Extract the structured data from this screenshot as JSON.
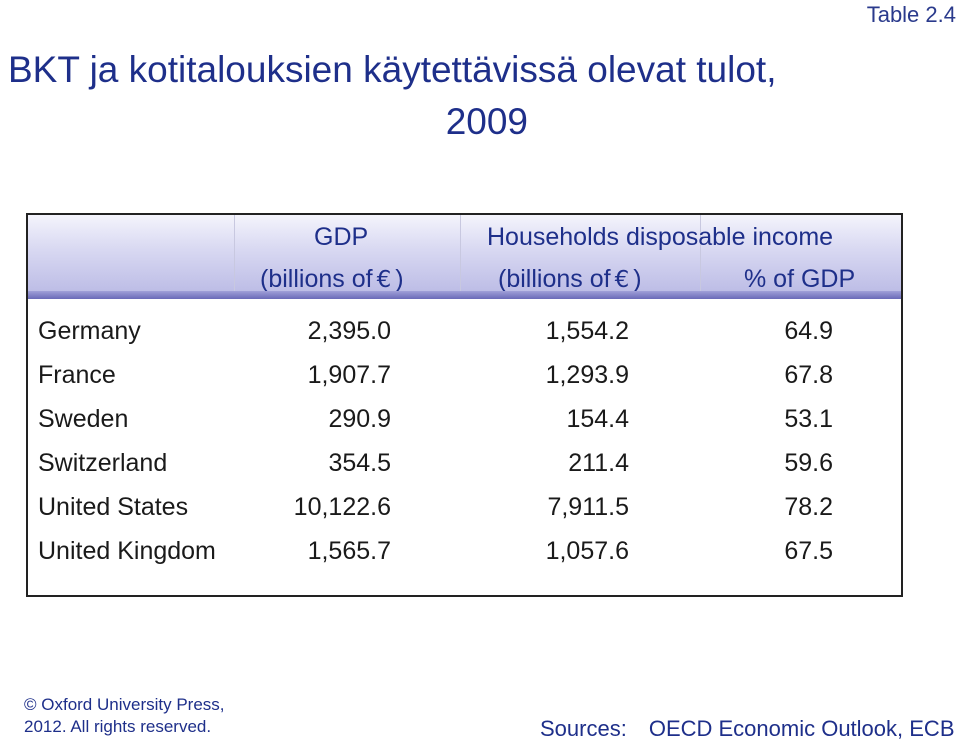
{
  "table_label": "Table 2.4",
  "title": {
    "line1": "BKT ja kotitalouksien käytettävissä olevat tulot,",
    "line2": "2009"
  },
  "table": {
    "header": {
      "gdp": "GDP",
      "household_income": "Households disposable income",
      "unit_gdp_prefix": "(billions of",
      "unit_gdp_suffix": ")",
      "unit_hdi_prefix": "(billions of",
      "unit_hdi_suffix": ")",
      "currency_symbol": "€",
      "pct_gdp": "% of GDP"
    },
    "rows": [
      {
        "country": "Germany",
        "gdp": "2,395.0",
        "income": "1,554.2",
        "pct": "64.9"
      },
      {
        "country": "France",
        "gdp": "1,907.7",
        "income": "1,293.9",
        "pct": "67.8"
      },
      {
        "country": "Sweden",
        "gdp": "290.9",
        "income": "154.4",
        "pct": "53.1"
      },
      {
        "country": "Switzerland",
        "gdp": "354.5",
        "income": "211.4",
        "pct": "59.6"
      },
      {
        "country": "United States",
        "gdp": "10,122.6",
        "income": "7,911.5",
        "pct": "78.2"
      },
      {
        "country": "United Kingdom",
        "gdp": "1,565.7",
        "income": "1,057.6",
        "pct": "67.5"
      }
    ]
  },
  "footer": {
    "copyright_line1": "© Oxford University Press,",
    "copyright_line2": "2012. All rights reserved.",
    "sources_label": "Sources:",
    "sources_value": "OECD Economic Outlook, ECB"
  }
}
